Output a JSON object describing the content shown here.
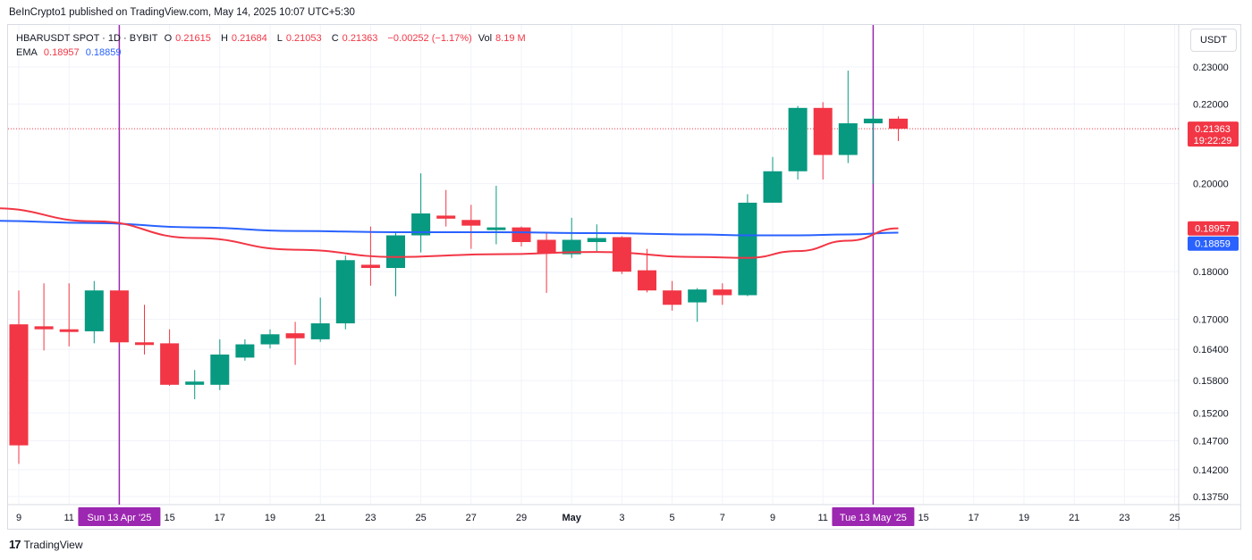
{
  "header": {
    "published": "BeInCrypto1 published on TradingView.com, May 14, 2025 10:07 UTC+5:30"
  },
  "legend": {
    "symbol": "HBARUSDT SPOT · 1D · BYBIT",
    "open_label": "O",
    "open": "0.21615",
    "high_label": "H",
    "high": "0.21684",
    "low_label": "L",
    "low": "0.21053",
    "close_label": "C",
    "close": "0.21363",
    "change": "−0.00252 (−1.17%)",
    "vol_label": "Vol",
    "vol": "8.19 M",
    "ema_label": "EMA",
    "ema1": "0.18957",
    "ema2": "0.18859"
  },
  "currency": "USDT",
  "footer": {
    "brand": "TradingView",
    "logo": "17"
  },
  "colors": {
    "up": "#089981",
    "down": "#f23645",
    "ema_slow": "#f23645",
    "ema_fast": "#2962ff",
    "marker": "#9c27b0"
  },
  "chart_data": {
    "type": "candlestick",
    "symbol": "HBARUSDT",
    "y_ticks": [
      "0.23000",
      "0.22000",
      "0.20000",
      "0.18000",
      "0.17000",
      "0.16400",
      "0.15800",
      "0.15200",
      "0.14700",
      "0.14200",
      "0.13750"
    ],
    "x_ticks": [
      "9",
      "11",
      "15",
      "17",
      "19",
      "21",
      "23",
      "25",
      "27",
      "29",
      "May",
      "3",
      "5",
      "7",
      "9",
      "11",
      "15",
      "17",
      "19",
      "21",
      "23",
      "25"
    ],
    "x_tick_days": [
      9,
      11,
      15,
      17,
      19,
      21,
      23,
      25,
      27,
      29,
      31,
      33,
      35,
      37,
      39,
      41,
      45,
      47,
      49,
      51,
      53,
      55
    ],
    "candles": [
      {
        "d": 9,
        "o": 0.169,
        "h": 0.176,
        "l": 0.143,
        "c": 0.1462
      },
      {
        "d": 10,
        "o": 0.1686,
        "h": 0.1775,
        "l": 0.1638,
        "c": 0.168
      },
      {
        "d": 11,
        "o": 0.168,
        "h": 0.1775,
        "l": 0.1646,
        "c": 0.1676
      },
      {
        "d": 12,
        "o": 0.1676,
        "h": 0.178,
        "l": 0.1652,
        "c": 0.176
      },
      {
        "d": 13,
        "o": 0.176,
        "h": 0.176,
        "l": 0.1652,
        "c": 0.1654
      },
      {
        "d": 14,
        "o": 0.1654,
        "h": 0.173,
        "l": 0.163,
        "c": 0.1652
      },
      {
        "d": 15,
        "o": 0.1652,
        "h": 0.168,
        "l": 0.157,
        "c": 0.1572
      },
      {
        "d": 16,
        "o": 0.1572,
        "h": 0.16,
        "l": 0.1545,
        "c": 0.1578
      },
      {
        "d": 17,
        "o": 0.1572,
        "h": 0.166,
        "l": 0.1562,
        "c": 0.163
      },
      {
        "d": 18,
        "o": 0.1624,
        "h": 0.166,
        "l": 0.1618,
        "c": 0.165
      },
      {
        "d": 19,
        "o": 0.165,
        "h": 0.168,
        "l": 0.1642,
        "c": 0.167
      },
      {
        "d": 20,
        "o": 0.1672,
        "h": 0.1695,
        "l": 0.161,
        "c": 0.1662
      },
      {
        "d": 21,
        "o": 0.166,
        "h": 0.1745,
        "l": 0.1655,
        "c": 0.1692
      },
      {
        "d": 22,
        "o": 0.1692,
        "h": 0.1835,
        "l": 0.168,
        "c": 0.1825
      },
      {
        "d": 23,
        "o": 0.1815,
        "h": 0.19,
        "l": 0.177,
        "c": 0.1808
      },
      {
        "d": 24,
        "o": 0.1808,
        "h": 0.1885,
        "l": 0.1748,
        "c": 0.188
      },
      {
        "d": 25,
        "o": 0.188,
        "h": 0.2025,
        "l": 0.1842,
        "c": 0.193
      },
      {
        "d": 26,
        "o": 0.1925,
        "h": 0.1985,
        "l": 0.19,
        "c": 0.1918
      },
      {
        "d": 27,
        "o": 0.1915,
        "h": 0.195,
        "l": 0.185,
        "c": 0.1902
      },
      {
        "d": 28,
        "o": 0.1892,
        "h": 0.1995,
        "l": 0.186,
        "c": 0.1898
      },
      {
        "d": 29,
        "o": 0.1898,
        "h": 0.19,
        "l": 0.1855,
        "c": 0.1865
      },
      {
        "d": 30,
        "o": 0.187,
        "h": 0.1885,
        "l": 0.1755,
        "c": 0.184
      },
      {
        "d": 31,
        "o": 0.1838,
        "h": 0.192,
        "l": 0.183,
        "c": 0.187
      },
      {
        "d": 32,
        "o": 0.1865,
        "h": 0.1905,
        "l": 0.1845,
        "c": 0.1874
      },
      {
        "d": 33,
        "o": 0.1876,
        "h": 0.1878,
        "l": 0.1795,
        "c": 0.18
      },
      {
        "d": 34,
        "o": 0.1803,
        "h": 0.185,
        "l": 0.1756,
        "c": 0.176
      },
      {
        "d": 35,
        "o": 0.176,
        "h": 0.178,
        "l": 0.1718,
        "c": 0.173
      },
      {
        "d": 36,
        "o": 0.1735,
        "h": 0.1765,
        "l": 0.1695,
        "c": 0.1762
      },
      {
        "d": 37,
        "o": 0.1762,
        "h": 0.1775,
        "l": 0.173,
        "c": 0.175
      },
      {
        "d": 38,
        "o": 0.175,
        "h": 0.1975,
        "l": 0.1748,
        "c": 0.1955
      },
      {
        "d": 39,
        "o": 0.1955,
        "h": 0.2065,
        "l": 0.1955,
        "c": 0.203
      },
      {
        "d": 40,
        "o": 0.203,
        "h": 0.2195,
        "l": 0.201,
        "c": 0.219
      },
      {
        "d": 41,
        "o": 0.219,
        "h": 0.2205,
        "l": 0.201,
        "c": 0.207
      },
      {
        "d": 42,
        "o": 0.207,
        "h": 0.229,
        "l": 0.205,
        "c": 0.215
      },
      {
        "d": 43,
        "o": 0.215,
        "h": 0.217,
        "l": 0.2,
        "c": 0.2162
      },
      {
        "d": 44,
        "o": 0.2162,
        "h": 0.2168,
        "l": 0.2105,
        "c": 0.2136
      }
    ],
    "ema_slow": {
      "name": "EMA",
      "last": 0.18957,
      "points": [
        [
          8,
          0.1942
        ],
        [
          12,
          0.1912
        ],
        [
          16,
          0.1874
        ],
        [
          20,
          0.1848
        ],
        [
          24,
          0.1832
        ],
        [
          28,
          0.1838
        ],
        [
          32,
          0.1843
        ],
        [
          36,
          0.1832
        ],
        [
          38,
          0.183
        ],
        [
          40,
          0.1845
        ],
        [
          42,
          0.1868
        ],
        [
          44,
          0.1896
        ]
      ]
    },
    "ema_fast": {
      "name": "EMA",
      "last": 0.18859,
      "points": [
        [
          8,
          0.1913
        ],
        [
          12,
          0.1908
        ],
        [
          16,
          0.1898
        ],
        [
          20,
          0.189
        ],
        [
          24,
          0.1887
        ],
        [
          28,
          0.1887
        ],
        [
          32,
          0.1885
        ],
        [
          36,
          0.1882
        ],
        [
          38,
          0.188
        ],
        [
          40,
          0.188
        ],
        [
          42,
          0.1882
        ],
        [
          44,
          0.1886
        ]
      ]
    },
    "current_price_label": "0.21363",
    "countdown_label": "19:22:29",
    "ema_slow_label": "0.18957",
    "ema_fast_label": "0.18859",
    "vertical_markers": [
      {
        "d": 13,
        "label": "Sun 13 Apr '25"
      },
      {
        "d": 43,
        "label": "Tue 13 May '25"
      }
    ],
    "grid": true
  }
}
